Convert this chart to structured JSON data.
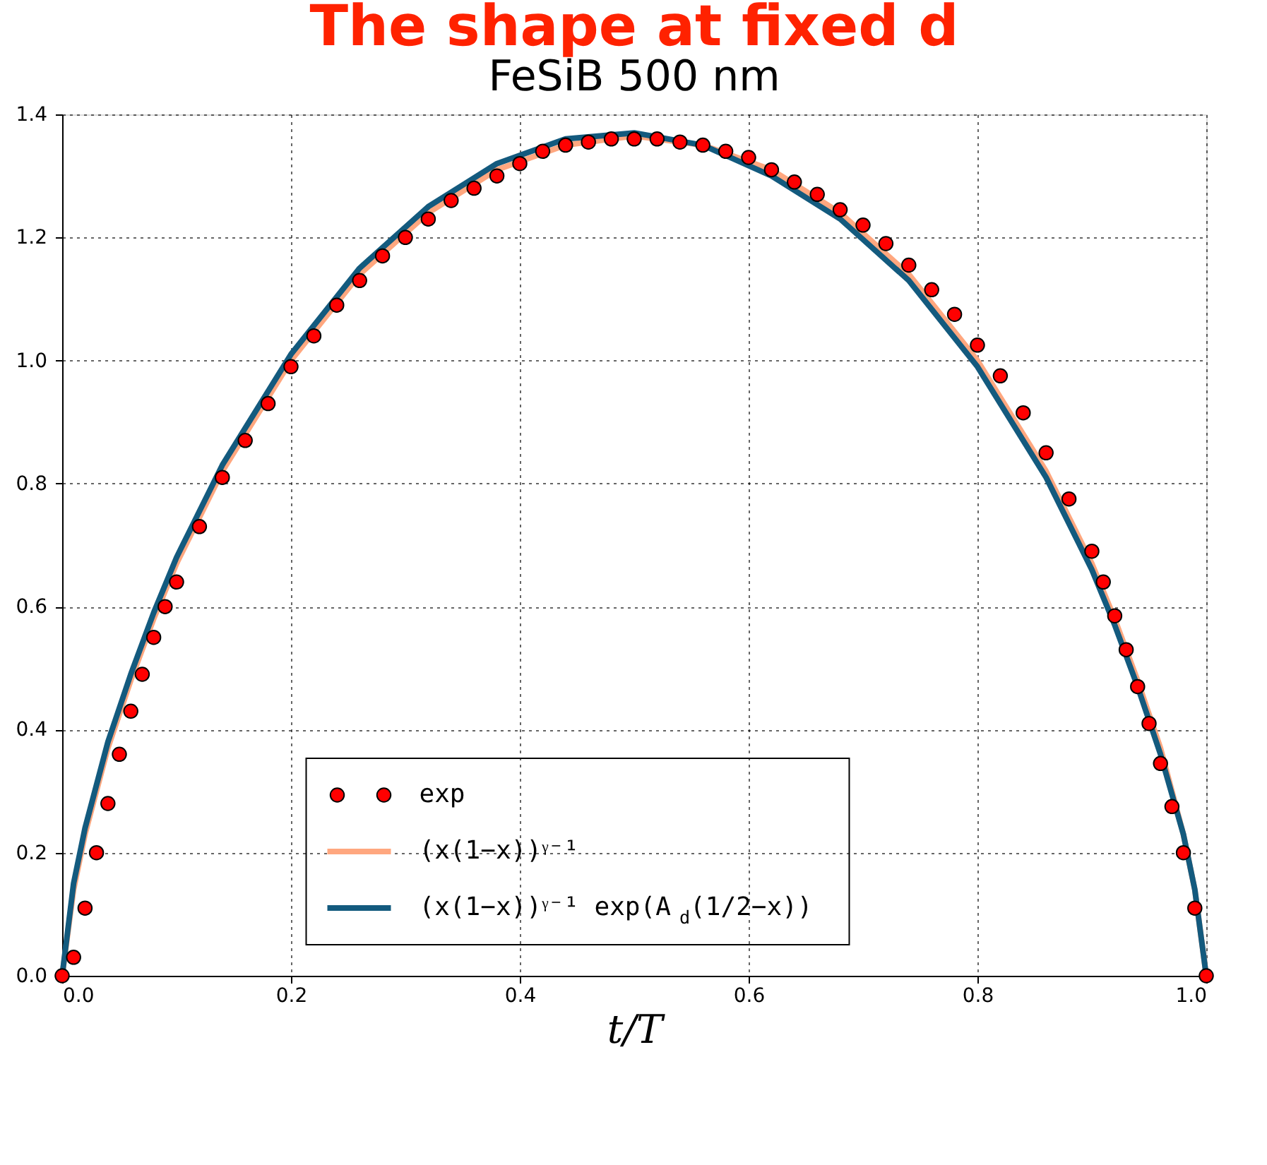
{
  "chart_data": {
    "type": "line",
    "title": "FeSiB 500 nm",
    "xlabel": "t/T",
    "annotations": [
      "The shape at fixed d"
    ],
    "xlim": [
      0,
      1
    ],
    "ylim": [
      0,
      1.4
    ],
    "xticks": [
      {
        "value": 0,
        "label": "0.0"
      },
      0.2,
      0.4,
      0.6,
      0.8,
      {
        "value": 1,
        "label": "1.0"
      }
    ],
    "yticks": [
      {
        "value": 0,
        "label": "0.0"
      },
      0.2,
      0.4,
      0.6,
      0.8,
      {
        "value": 1,
        "label": "1.0"
      },
      1.2,
      1.4
    ],
    "grid": true,
    "legend": "bottom",
    "line_style": "solid",
    "series": [
      {
        "name": "exp",
        "type": "scatter",
        "marker": "circle",
        "color": "#ff0000",
        "x": [
          0,
          0.01,
          0.02,
          0.03,
          0.04,
          0.05,
          0.06,
          0.07,
          0.08,
          0.09,
          0.1,
          0.12,
          0.14,
          0.16,
          0.18,
          0.2,
          0.22,
          0.24,
          0.26,
          0.28,
          0.3,
          0.32,
          0.34,
          0.36,
          0.38,
          0.4,
          0.42,
          0.44,
          0.46,
          0.48,
          0.5,
          0.52,
          0.54,
          0.56,
          0.58,
          0.6,
          0.62,
          0.64,
          0.66,
          0.68,
          0.7,
          0.72,
          0.74,
          0.76,
          0.78,
          0.8,
          0.82,
          0.84,
          0.86,
          0.88,
          0.9,
          0.91,
          0.92,
          0.93,
          0.94,
          0.95,
          0.96,
          0.97,
          0.98,
          0.99,
          1.0
        ],
        "values": [
          0,
          0.03,
          0.11,
          0.2,
          0.28,
          0.36,
          0.43,
          0.49,
          0.55,
          0.6,
          0.64,
          0.73,
          0.81,
          0.87,
          0.93,
          0.99,
          1.04,
          1.09,
          1.13,
          1.17,
          1.2,
          1.23,
          1.26,
          1.28,
          1.3,
          1.32,
          1.34,
          1.35,
          1.355,
          1.36,
          1.36,
          1.36,
          1.355,
          1.35,
          1.34,
          1.33,
          1.31,
          1.29,
          1.27,
          1.245,
          1.22,
          1.19,
          1.155,
          1.115,
          1.075,
          1.025,
          0.975,
          0.915,
          0.85,
          0.775,
          0.69,
          0.64,
          0.585,
          0.53,
          0.47,
          0.41,
          0.345,
          0.275,
          0.2,
          0.11,
          0
        ]
      },
      {
        "name": "(x(1−x))ᵞ⁻¹",
        "color": "#ffa77f",
        "x": [
          0,
          0.01,
          0.02,
          0.04,
          0.06,
          0.08,
          0.1,
          0.14,
          0.2,
          0.26,
          0.32,
          0.38,
          0.44,
          0.5,
          0.56,
          0.62,
          0.68,
          0.74,
          0.8,
          0.86,
          0.9,
          0.92,
          0.94,
          0.96,
          0.98,
          0.99,
          1.0
        ],
        "values": [
          0,
          0.14,
          0.23,
          0.37,
          0.48,
          0.58,
          0.67,
          0.82,
          1.0,
          1.14,
          1.24,
          1.31,
          1.35,
          1.365,
          1.35,
          1.31,
          1.24,
          1.14,
          1.0,
          0.82,
          0.67,
          0.58,
          0.48,
          0.37,
          0.23,
          0.14,
          0
        ]
      },
      {
        "name": "(x(1−x))ᵞ⁻¹ exp(A$_{d}$(1/2−x))",
        "color": "#135a7e",
        "x": [
          0,
          0.01,
          0.02,
          0.04,
          0.06,
          0.08,
          0.1,
          0.14,
          0.2,
          0.26,
          0.32,
          0.38,
          0.44,
          0.5,
          0.56,
          0.62,
          0.68,
          0.74,
          0.8,
          0.86,
          0.9,
          0.92,
          0.94,
          0.96,
          0.98,
          0.99,
          1.0
        ],
        "values": [
          0,
          0.15,
          0.24,
          0.38,
          0.49,
          0.59,
          0.68,
          0.83,
          1.01,
          1.15,
          1.25,
          1.32,
          1.36,
          1.37,
          1.35,
          1.3,
          1.23,
          1.13,
          0.99,
          0.81,
          0.66,
          0.57,
          0.47,
          0.36,
          0.23,
          0.14,
          0
        ]
      }
    ]
  }
}
